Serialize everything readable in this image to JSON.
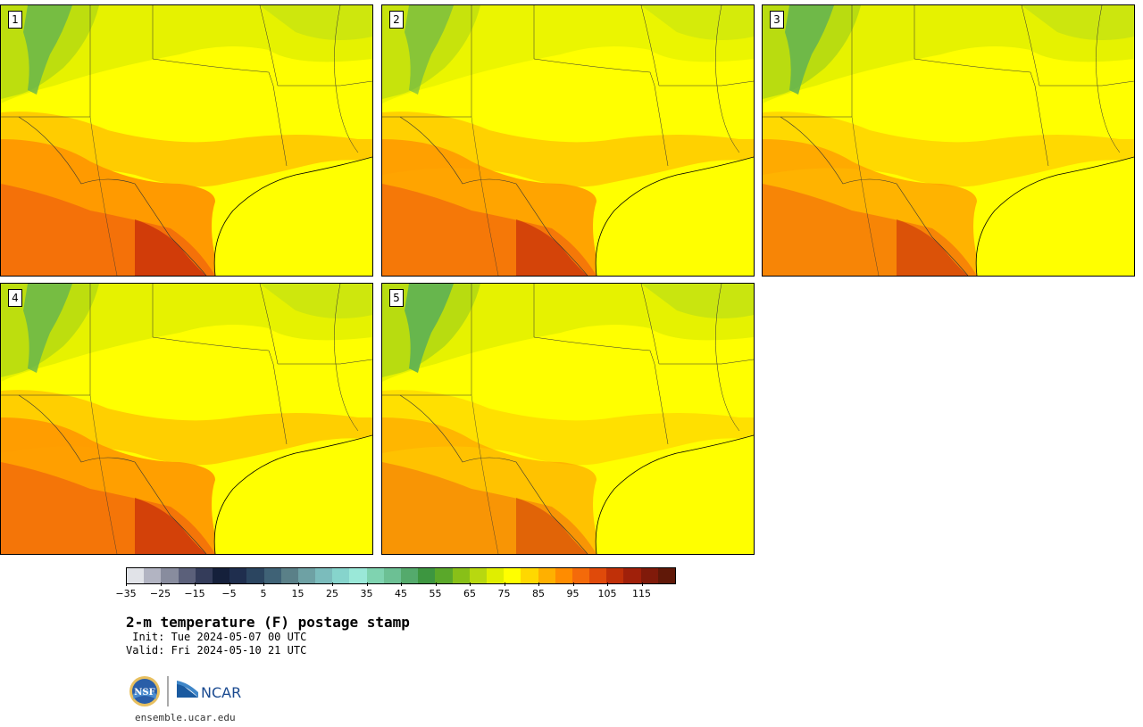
{
  "panels": [
    {
      "label": "1"
    },
    {
      "label": "2"
    },
    {
      "label": "3"
    },
    {
      "label": "4"
    },
    {
      "label": "5"
    }
  ],
  "colorbar": {
    "colors": [
      "#e1e3e8",
      "#b2b4c2",
      "#888c9e",
      "#5b607a",
      "#343c5a",
      "#15203b",
      "#1f2e4e",
      "#2b4560",
      "#3f6276",
      "#5a8088",
      "#6ea1a4",
      "#7bbcbc",
      "#86d4cc",
      "#9ae8d8",
      "#7fd3b0",
      "#6cc094",
      "#54aa6c",
      "#3d9640",
      "#5aa82a",
      "#88c018",
      "#b8d810",
      "#e0ee00",
      "#ffff00",
      "#ffd800",
      "#ffb000",
      "#ff8c00",
      "#f46a0a",
      "#e04a0a",
      "#c03008",
      "#a0200a",
      "#801a0a",
      "#601808"
    ],
    "tick_labels": [
      "−35",
      "−25",
      "−15",
      "−5",
      "5",
      "15",
      "25",
      "35",
      "45",
      "55",
      "65",
      "75",
      "85",
      "95",
      "105",
      "115"
    ]
  },
  "title": "2-m temperature (F) postage stamp",
  "init": " Init: Tue 2024-05-07 00 UTC",
  "valid": "Valid: Fri 2024-05-10 21 UTC",
  "logo": {
    "nsf": "NSF",
    "ncar": "NCAR"
  },
  "site": "ensemble.ucar.edu"
}
